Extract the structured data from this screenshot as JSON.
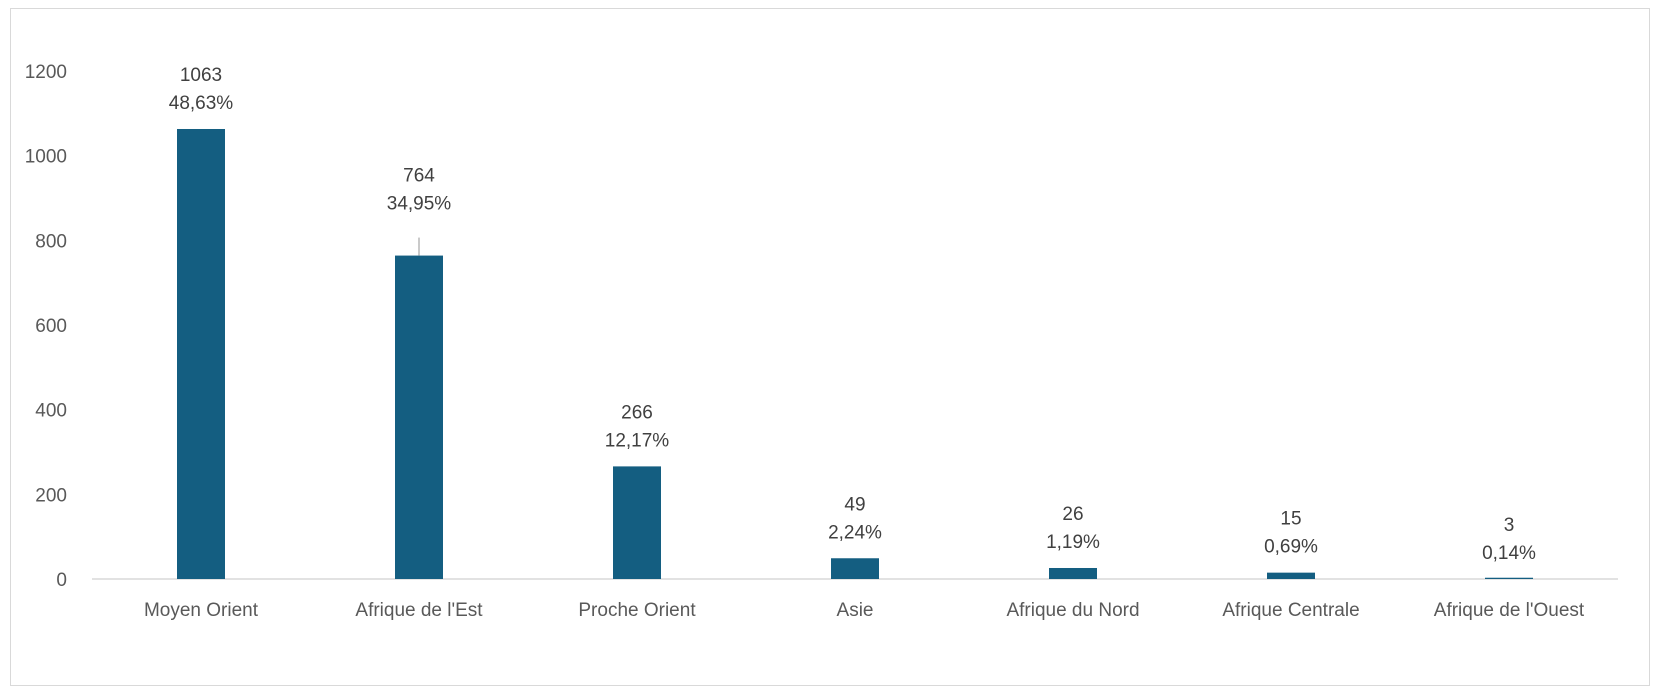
{
  "chart_data": {
    "type": "bar",
    "title": "",
    "xlabel": "",
    "ylabel": "",
    "categories": [
      "Moyen Orient",
      "Afrique de l'Est",
      "Proche Orient",
      "Asie",
      "Afrique du Nord",
      "Afrique Centrale",
      "Afrique de l'Ouest"
    ],
    "values": [
      1063,
      764,
      266,
      49,
      26,
      15,
      3
    ],
    "percent_labels": [
      "48,63%",
      "34,95%",
      "12,17%",
      "2,24%",
      "1,19%",
      "0,69%",
      "0,14%"
    ],
    "ylim": [
      0,
      1200
    ],
    "yticks": [
      0,
      200,
      400,
      600,
      800,
      1000,
      1200
    ],
    "grid": false,
    "legend": "none",
    "bar_color": "#145e81"
  }
}
